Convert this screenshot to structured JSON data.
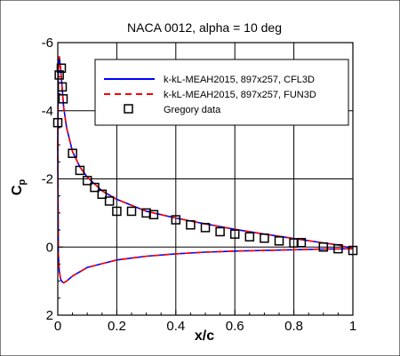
{
  "chart_data": {
    "type": "line",
    "title": "NACA 0012, alpha = 10 deg",
    "xlabel": "x/c",
    "ylabel_main": "C",
    "ylabel_sub": "p",
    "xlim": [
      0,
      1
    ],
    "ylim": [
      -6,
      2
    ],
    "y_inverted": true,
    "grid": true,
    "legend_position": "top-right",
    "x_ticks": [
      0,
      0.2,
      0.4,
      0.6,
      0.8,
      1
    ],
    "x_tick_labels": [
      "0",
      "0.2",
      "0.4",
      "0.6",
      "0.8",
      "1"
    ],
    "y_ticks": [
      -6,
      -4,
      -2,
      0,
      2
    ],
    "y_tick_labels": [
      "-6",
      "-4",
      "-2",
      "0",
      "2"
    ],
    "series": [
      {
        "name": "k-kL-MEAH2015, 897x257, CFL3D",
        "color": "#0000ff",
        "style": "solid",
        "upper": {
          "x": [
            0,
            0.002,
            0.005,
            0.01,
            0.02,
            0.03,
            0.05,
            0.075,
            0.1,
            0.15,
            0.2,
            0.3,
            0.4,
            0.5,
            0.6,
            0.7,
            0.8,
            0.9,
            0.95,
            1.0
          ],
          "y": [
            -3.0,
            -5.2,
            -5.6,
            -5.2,
            -4.1,
            -3.5,
            -2.8,
            -2.35,
            -2.05,
            -1.65,
            -1.4,
            -1.05,
            -0.85,
            -0.68,
            -0.52,
            -0.38,
            -0.25,
            -0.12,
            -0.06,
            0.05
          ]
        },
        "lower": {
          "x": [
            0,
            0.002,
            0.005,
            0.01,
            0.015,
            0.02,
            0.03,
            0.05,
            0.1,
            0.2,
            0.3,
            0.4,
            0.5,
            0.6,
            0.7,
            0.8,
            0.9,
            1.0
          ],
          "y": [
            -3.0,
            0.2,
            0.7,
            0.95,
            1.02,
            1.05,
            1.0,
            0.85,
            0.6,
            0.38,
            0.27,
            0.2,
            0.15,
            0.12,
            0.1,
            0.08,
            0.06,
            0.05
          ]
        }
      },
      {
        "name": "k-kL-MEAH2015, 897x257, FUN3D",
        "color": "#ff0000",
        "style": "dashed",
        "upper": {
          "x": [
            0,
            0.002,
            0.005,
            0.01,
            0.02,
            0.03,
            0.05,
            0.075,
            0.1,
            0.15,
            0.2,
            0.3,
            0.4,
            0.5,
            0.6,
            0.7,
            0.8,
            0.9,
            0.95,
            1.0
          ],
          "y": [
            -3.0,
            -5.2,
            -5.6,
            -5.2,
            -4.1,
            -3.5,
            -2.8,
            -2.35,
            -2.05,
            -1.65,
            -1.4,
            -1.05,
            -0.85,
            -0.68,
            -0.52,
            -0.38,
            -0.25,
            -0.12,
            -0.06,
            0.05
          ]
        },
        "lower": {
          "x": [
            0,
            0.002,
            0.005,
            0.01,
            0.015,
            0.02,
            0.03,
            0.05,
            0.1,
            0.2,
            0.3,
            0.4,
            0.5,
            0.6,
            0.7,
            0.8,
            0.9,
            1.0
          ],
          "y": [
            -3.0,
            0.2,
            0.7,
            0.95,
            1.02,
            1.05,
            1.0,
            0.85,
            0.6,
            0.38,
            0.27,
            0.2,
            0.15,
            0.12,
            0.1,
            0.08,
            0.06,
            0.05
          ]
        }
      },
      {
        "name": "Gregory data",
        "marker": "square",
        "color": "#000000",
        "x": [
          0.0,
          0.005,
          0.012,
          0.015,
          0.018,
          0.05,
          0.075,
          0.1,
          0.125,
          0.15,
          0.175,
          0.2,
          0.25,
          0.3,
          0.325,
          0.4,
          0.45,
          0.5,
          0.55,
          0.6,
          0.65,
          0.7,
          0.75,
          0.8,
          0.825,
          0.9,
          0.95,
          1.0
        ],
        "y": [
          -3.65,
          -5.05,
          -5.25,
          -4.7,
          -4.35,
          -2.75,
          -2.25,
          -1.95,
          -1.75,
          -1.55,
          -1.35,
          -1.05,
          -1.05,
          -1.0,
          -0.95,
          -0.8,
          -0.65,
          -0.57,
          -0.45,
          -0.38,
          -0.3,
          -0.26,
          -0.18,
          -0.12,
          -0.13,
          0.0,
          0.05,
          0.1
        ]
      }
    ]
  }
}
